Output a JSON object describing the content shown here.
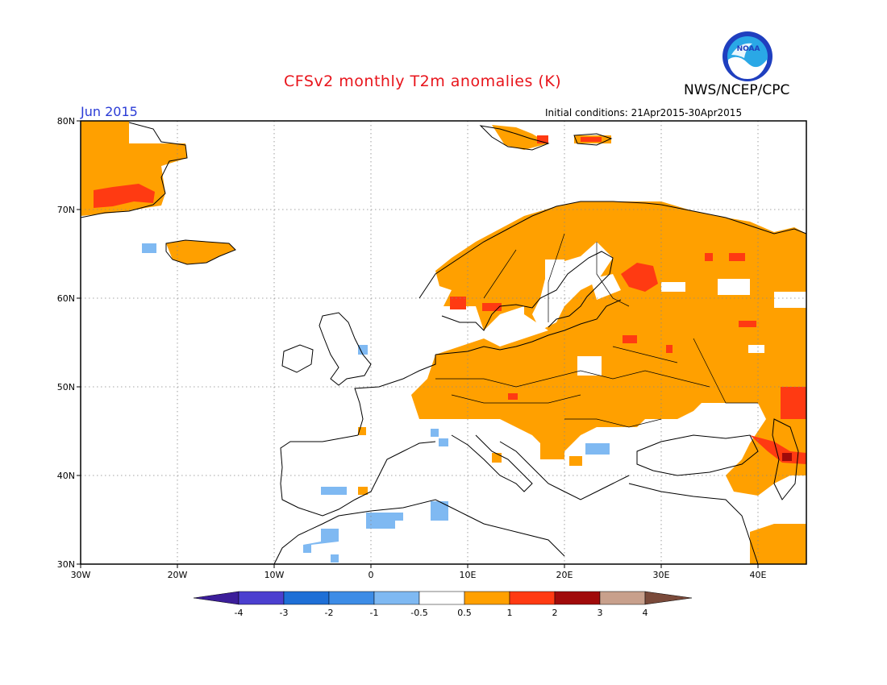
{
  "header": {
    "title": "CFSv2 monthly T2m anomalies (K)",
    "agency": "NWS/NCEP/CPC",
    "logo_text": "NOAA",
    "month": "Jun 2015",
    "initial_conditions": "Initial conditions: 21Apr2015-30Apr2015"
  },
  "map": {
    "lon_range": [
      -30,
      45
    ],
    "lat_range": [
      30,
      80
    ],
    "lon_ticks": [
      "30W",
      "20W",
      "10W",
      "0",
      "10E",
      "20E",
      "30E",
      "40E"
    ],
    "lat_ticks": [
      "30N",
      "40N",
      "50N",
      "60N",
      "70N",
      "80N"
    ],
    "grid": true,
    "anomaly_regions": [
      {
        "name": "Greenland east coast",
        "category": "0.5-1"
      },
      {
        "name": "Greenland interior",
        "category": "1-2"
      },
      {
        "name": "Iceland",
        "category": "0.5-1"
      },
      {
        "name": "Svalbard",
        "category": "0.5-1"
      },
      {
        "name": "Scandinavia",
        "category": "0.5-1"
      },
      {
        "name": "Finland / NW Russia",
        "category": "1-2"
      },
      {
        "name": "Central & Eastern Europe",
        "category": "0.5-1"
      },
      {
        "name": "Western Russia",
        "category": "0.5-1"
      },
      {
        "name": "Caucasus",
        "category": "1-2"
      },
      {
        "name": "Middle East",
        "category": "0.5-1"
      },
      {
        "name": "SW Iberia coast",
        "category": "-1--0.5"
      },
      {
        "name": "North Africa (Algeria)",
        "category": "-1--0.5"
      },
      {
        "name": "Morocco",
        "category": "-1--0.5"
      }
    ]
  },
  "legend": {
    "labels": [
      "-4",
      "-3",
      "-2",
      "-1",
      "-0.5",
      "0.5",
      "1",
      "2",
      "3",
      "4"
    ],
    "colors": [
      "#3c1e9a",
      "#4b3fcf",
      "#1e6fd6",
      "#3d8ce6",
      "#7fb9f2",
      "#ffffff",
      "#ffa000",
      "#ff3a12",
      "#a00a0a",
      "#c8a08c",
      "#7a4a3a"
    ]
  }
}
